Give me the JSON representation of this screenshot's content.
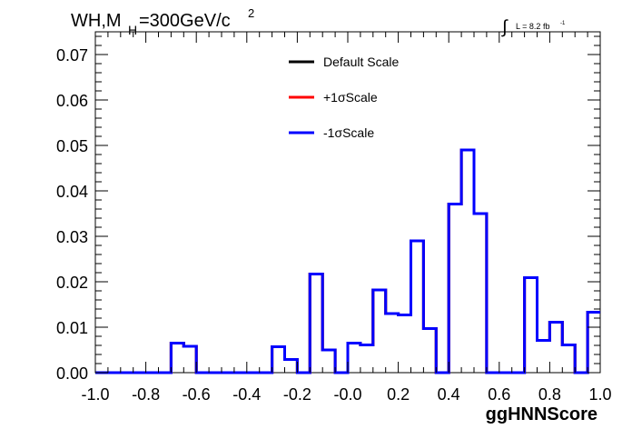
{
  "title": {
    "main": "WH,M",
    "sub": "H",
    "rest": "=300GeV/c",
    "sup": "2"
  },
  "lumi": {
    "integral": "∫",
    "text": "L = 8.2 fb",
    "sup": "-1"
  },
  "legend": {
    "items": [
      {
        "label": "Default Scale",
        "color": "#000000"
      },
      {
        "label": "+1σScale",
        "color": "#ff0000"
      },
      {
        "label": "-1σScale",
        "color": "#0000ff"
      }
    ]
  },
  "chart_data": {
    "type": "histogram",
    "xlabel": "ggHNNScore",
    "ylabel": "",
    "xlim": [
      -1.0,
      1.0
    ],
    "ylim": [
      0,
      0.075
    ],
    "x_ticks": [
      "-1.0",
      "-0.8",
      "-0.6",
      "-0.4",
      "-0.2",
      "-0.0",
      "0.2",
      "0.4",
      "0.6",
      "0.8",
      "1.0"
    ],
    "y_ticks": [
      "0.00",
      "0.01",
      "0.02",
      "0.03",
      "0.04",
      "0.05",
      "0.06",
      "0.07"
    ],
    "bin_width": 0.05,
    "bin_edges_start": -1.0,
    "series": [
      {
        "name": "Default Scale",
        "color": "#000000",
        "values": [
          0,
          0,
          0,
          0,
          0,
          0,
          0.0065,
          0.0058,
          0,
          0,
          0,
          0,
          0,
          0,
          0.0057,
          0.0029,
          0,
          0.0217,
          0.005,
          0,
          0.0065,
          0.0061,
          0.0182,
          0.013,
          0.0127,
          0.029,
          0.0097,
          0,
          0.0371,
          0.049,
          0.035,
          0,
          0,
          0,
          0.0209,
          0.0071,
          0.0111,
          0.0061,
          0,
          0.0133
        ]
      },
      {
        "name": "+1σScale",
        "color": "#ff0000",
        "values": [
          0,
          0,
          0,
          0,
          0,
          0,
          0.0065,
          0.0058,
          0,
          0,
          0,
          0,
          0,
          0,
          0.0057,
          0.0029,
          0,
          0.0217,
          0.005,
          0,
          0.0065,
          0.0061,
          0.0182,
          0.013,
          0.0127,
          0.029,
          0.0097,
          0,
          0.0371,
          0.049,
          0.035,
          0,
          0,
          0,
          0.0209,
          0.0071,
          0.0111,
          0.0061,
          0,
          0.0133
        ]
      },
      {
        "name": "-1σScale",
        "color": "#0000ff",
        "values": [
          0,
          0,
          0,
          0,
          0,
          0,
          0.0065,
          0.0058,
          0,
          0,
          0,
          0,
          0,
          0,
          0.0057,
          0.0029,
          0,
          0.0217,
          0.005,
          0,
          0.0065,
          0.0061,
          0.0182,
          0.013,
          0.0127,
          0.029,
          0.0097,
          0,
          0.0371,
          0.049,
          0.035,
          0,
          0,
          0,
          0.0209,
          0.0071,
          0.0111,
          0.0061,
          0,
          0.0133
        ]
      }
    ],
    "grid": false,
    "legend_position": "top-center"
  }
}
